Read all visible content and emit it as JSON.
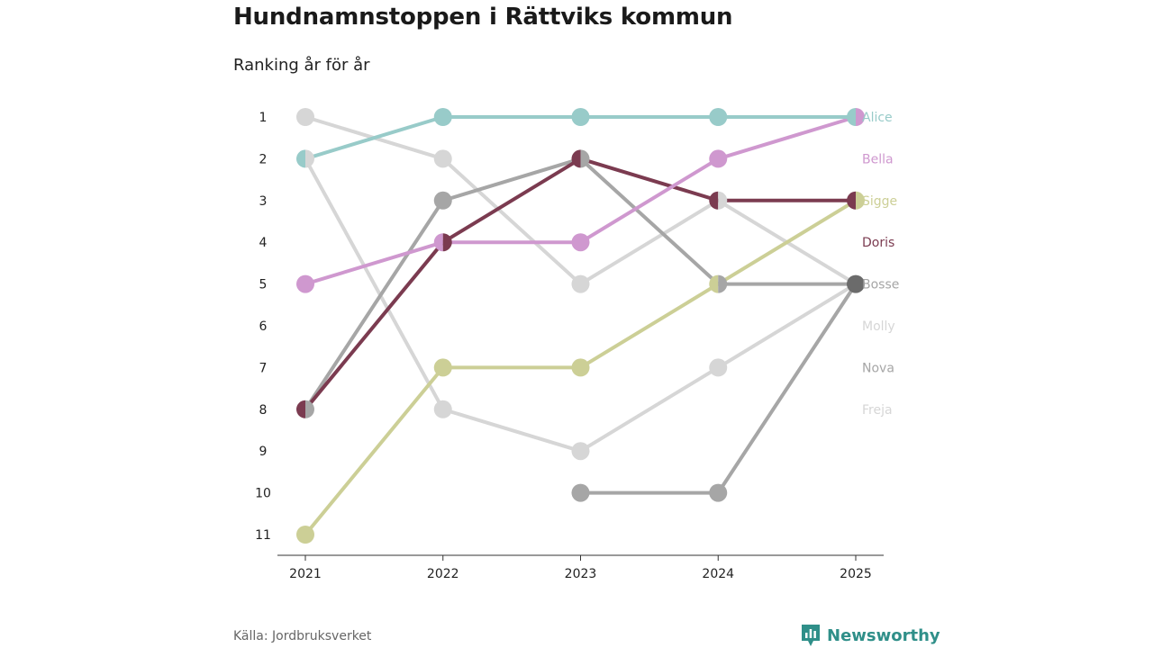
{
  "header": {
    "title": "Hundnamnstoppen i Rättviks kommun",
    "subtitle": "Ranking år för år"
  },
  "footer": {
    "source": "Källa: Jordbruksverket",
    "brand": "Newsworthy",
    "brand_color": "#2f8f89"
  },
  "chart_data": {
    "type": "line",
    "title": "Hundnamnstoppen i Rättviks kommun",
    "subtitle": "Ranking år för år",
    "xlabel": "",
    "ylabel": "",
    "x": [
      "2021",
      "2022",
      "2023",
      "2024",
      "2025"
    ],
    "y_ticks": [
      "1",
      "2",
      "3",
      "4",
      "5",
      "6",
      "7",
      "8",
      "9",
      "10",
      "11"
    ],
    "ylim": [
      1,
      11
    ],
    "y_inverted": true,
    "grid": false,
    "series": [
      {
        "name": "Freja",
        "color": "#d6d6d6",
        "values": [
          2,
          8,
          9,
          7,
          5
        ]
      },
      {
        "name": "Molly",
        "color": "#d6d6d6",
        "values": [
          1,
          2,
          5,
          3,
          5
        ]
      },
      {
        "name": "Nova",
        "color": "#a6a6a6",
        "values": [
          null,
          null,
          10,
          10,
          5
        ]
      },
      {
        "name": "Bosse",
        "color": "#a6a6a6",
        "values": [
          8,
          3,
          2,
          5,
          5
        ]
      },
      {
        "name": "Sigge",
        "color": "#cccf96",
        "values": [
          11,
          7,
          7,
          5,
          3
        ]
      },
      {
        "name": "Doris",
        "color": "#7b3b50",
        "values": [
          8,
          4,
          2,
          3,
          3
        ]
      },
      {
        "name": "Bella",
        "color": "#cf98cf",
        "values": [
          5,
          4,
          4,
          2,
          1
        ]
      },
      {
        "name": "Alice",
        "color": "#98cbc9",
        "values": [
          2,
          1,
          1,
          1,
          1
        ]
      }
    ],
    "labels": [
      {
        "name": "Alice",
        "color": "#98cbc9"
      },
      {
        "name": "Bella",
        "color": "#cf98cf"
      },
      {
        "name": "Sigge",
        "color": "#cccf96"
      },
      {
        "name": "Doris",
        "color": "#7b3b50"
      },
      {
        "name": "Bosse",
        "color": "#a6a6a6"
      },
      {
        "name": "Molly",
        "color": "#d6d6d6"
      },
      {
        "name": "Nova",
        "color": "#a6a6a6"
      },
      {
        "name": "Freja",
        "color": "#d6d6d6"
      }
    ],
    "end_point_color": "#6b6b6b"
  }
}
